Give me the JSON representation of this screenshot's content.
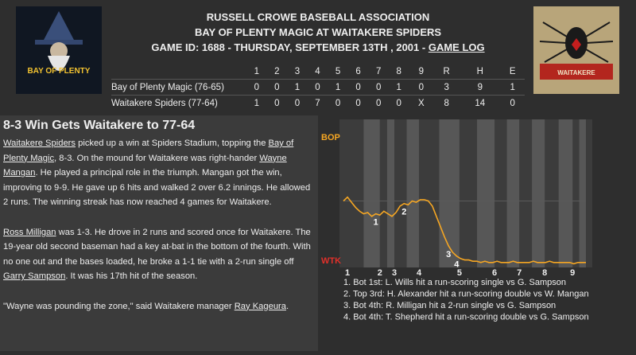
{
  "header": {
    "league": "RUSSELL CROWE BASEBALL ASSOCIATION",
    "matchup": "BAY OF PLENTY MAGIC AT WAITAKERE SPIDERS",
    "game_info": "GAME ID: 1688 - THURSDAY, SEPTEMBER 13TH , 2001 - ",
    "game_log_link": "GAME LOG"
  },
  "logos": {
    "away": "BAY OF PLENTY",
    "home": "WAITAKERE"
  },
  "box_score": {
    "columns": [
      "1",
      "2",
      "3",
      "4",
      "5",
      "6",
      "7",
      "8",
      "9",
      "R",
      "H",
      "E"
    ],
    "rows": [
      {
        "team": "Bay of Plenty Magic (76-65)",
        "cells": [
          0,
          0,
          1,
          0,
          1,
          0,
          0,
          1,
          0,
          3,
          9,
          1
        ]
      },
      {
        "team": "Waitakere Spiders (77-64)",
        "cells": [
          1,
          0,
          0,
          7,
          0,
          0,
          0,
          0,
          "X",
          8,
          14,
          0
        ]
      }
    ]
  },
  "article": {
    "headline": "8-3 Win Gets Waitakere to 77-64",
    "paragraphs": [
      [
        {
          "link": "Waitakere Spiders"
        },
        {
          "text": " picked up a win at Spiders Stadium, topping the "
        },
        {
          "link": "Bay of Plenty Magic"
        },
        {
          "text": ", 8-3. On the mound for Waitakere was right-hander "
        },
        {
          "link": "Wayne Mangan"
        },
        {
          "text": ". He played a principal role in the triumph. Mangan got the win, improving to 9-9. He gave up 6 hits and walked 2 over 6.2 innings. He allowed 2 runs. The winning streak has now reached 4 games for Waitakere."
        }
      ],
      [
        {
          "link": "Ross Milligan"
        },
        {
          "text": " was 1-3. He drove in 2 runs and scored once for Waitakere. The 19-year old second baseman had a key at-bat in the bottom of the fourth. With no one out and the bases loaded, he broke a 1-1 tie with a 2-run single off "
        },
        {
          "link": "Garry Sampson"
        },
        {
          "text": ". It was his 17th hit of the season."
        }
      ],
      [
        {
          "text": "\"Wayne was pounding the zone,\" said Waitakere manager "
        },
        {
          "link": "Ray Kageura"
        },
        {
          "text": "."
        }
      ]
    ]
  },
  "win_chart": {
    "type": "line",
    "top_label": "BOP",
    "bottom_label": "WTK",
    "color": "#f5a623",
    "x": [
      0,
      1,
      2,
      3,
      4,
      5,
      6,
      7,
      8,
      9,
      10,
      11,
      12,
      13,
      14,
      15,
      16,
      17,
      18,
      19,
      20,
      21,
      22,
      23,
      24,
      25,
      26,
      27,
      28,
      29,
      30,
      31,
      32,
      33,
      34,
      35,
      36,
      37,
      38,
      39,
      40,
      41,
      42,
      43,
      44,
      45,
      46,
      47,
      48,
      49,
      50,
      51,
      52,
      53,
      54,
      55,
      56,
      57,
      58,
      59,
      60
    ],
    "values": [
      50,
      53,
      49,
      45,
      42,
      40,
      41,
      38,
      40,
      39,
      42,
      40,
      38,
      41,
      46,
      48,
      47,
      50,
      49,
      51,
      51,
      50,
      46,
      38,
      30,
      22,
      15,
      10,
      7,
      5,
      4,
      4,
      3,
      3,
      2,
      3,
      2,
      2,
      3,
      2,
      2,
      2,
      3,
      2,
      2,
      2,
      2,
      3,
      2,
      2,
      2,
      3,
      2,
      2,
      2,
      2,
      2,
      1,
      2,
      2,
      2
    ],
    "xlim": [
      0,
      60
    ],
    "ylim": [
      0,
      100
    ],
    "xticks": [
      {
        "value": 1,
        "label": "1"
      },
      {
        "value": 9,
        "label": "2"
      },
      {
        "value": 12.6,
        "label": "3"
      },
      {
        "value": 18.7,
        "label": "4"
      },
      {
        "value": 28.7,
        "label": "5"
      },
      {
        "value": 37.4,
        "label": "6"
      },
      {
        "value": 43.5,
        "label": "7"
      },
      {
        "value": 49.8,
        "label": "8"
      },
      {
        "value": 56.7,
        "label": "9"
      }
    ],
    "annotations": [
      {
        "label": "1",
        "x": 8
      },
      {
        "label": "2",
        "x": 15
      },
      {
        "label": "3",
        "x": 26
      },
      {
        "label": "4",
        "x": 28
      }
    ],
    "notes": [
      "1. Bot 1st: L. Wills hit a run-scoring single vs G. Sampson",
      "2. Top 3rd: H. Alexander hit a run-scoring double vs W. Mangan",
      "3. Bot 4th: R. Milligan hit a 2-run single vs G. Sampson",
      "4. Bot 4th: T. Shepherd hit a run-scoring double vs G. Sampson"
    ]
  }
}
